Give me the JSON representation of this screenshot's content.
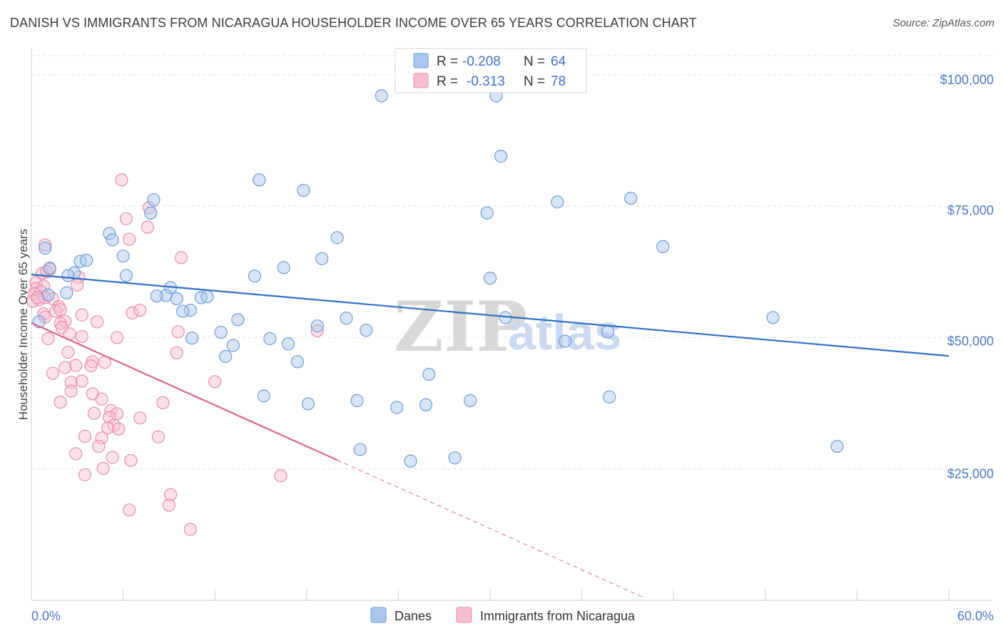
{
  "header": {
    "title": "DANISH VS IMMIGRANTS FROM NICARAGUA HOUSEHOLDER INCOME OVER 65 YEARS CORRELATION CHART",
    "source": "Source: ZipAtlas.com"
  },
  "watermark": {
    "zip": "ZIP",
    "atlas": "atlas"
  },
  "colors": {
    "danes_fill": "#a9c6ee",
    "danes_stroke": "#6f9ad6",
    "danes_line": "#2f6fc7",
    "nic_fill": "#f6bfd0",
    "nic_stroke": "#e98aa9",
    "nic_line": "#e0638e",
    "grid": "#e1e1e1",
    "axis_text": "#4a78c4"
  },
  "legend": {
    "rows": [
      {
        "r_label": "R =",
        "r_value": "-0.208",
        "n_label": "N =",
        "n_value": "64"
      },
      {
        "r_label": "R =",
        "r_value": "-0.313",
        "n_label": "N =",
        "n_value": "78"
      }
    ]
  },
  "bottom_legend": {
    "items": [
      "Danes",
      "Immigrants from Nicaragua"
    ]
  },
  "chart_data": {
    "type": "scatter",
    "title": "DANISH VS IMMIGRANTS FROM NICARAGUA HOUSEHOLDER INCOME OVER 65 YEARS CORRELATION CHART",
    "ylabel": "Householder Income Over 65 years",
    "xlabel": "",
    "xlim": [
      0,
      60
    ],
    "ylim": [
      0,
      105000
    ],
    "x_tick_labels": [
      "0.0%",
      "60.0%"
    ],
    "y_ticks": [
      25000,
      50000,
      75000,
      100000
    ],
    "y_tick_labels": [
      "$25,000",
      "$50,000",
      "$75,000",
      "$100,000"
    ],
    "grid": true,
    "legend_position": "top-center",
    "series": [
      {
        "name": "Danes",
        "trend": {
          "x": [
            0,
            60
          ],
          "y": [
            62000,
            46500
          ]
        },
        "points": [
          [
            22.9,
            96000
          ],
          [
            30.4,
            96000
          ],
          [
            30.7,
            84500
          ],
          [
            14.9,
            80000
          ],
          [
            17.8,
            78000
          ],
          [
            8.0,
            76200
          ],
          [
            39.2,
            76500
          ],
          [
            34.4,
            75800
          ],
          [
            29.8,
            73700
          ],
          [
            7.8,
            73700
          ],
          [
            5.1,
            69800
          ],
          [
            5.3,
            68600
          ],
          [
            20.0,
            69000
          ],
          [
            41.3,
            67300
          ],
          [
            0.9,
            67000
          ],
          [
            6.0,
            65500
          ],
          [
            19.0,
            65000
          ],
          [
            3.2,
            64500
          ],
          [
            3.6,
            64700
          ],
          [
            1.2,
            63200
          ],
          [
            16.5,
            63300
          ],
          [
            2.8,
            62300
          ],
          [
            2.4,
            61800
          ],
          [
            6.2,
            61800
          ],
          [
            14.6,
            61700
          ],
          [
            30.0,
            61300
          ],
          [
            9.1,
            59500
          ],
          [
            2.3,
            58500
          ],
          [
            8.8,
            58000
          ],
          [
            9.5,
            57400
          ],
          [
            11.1,
            57600
          ],
          [
            11.5,
            57800
          ],
          [
            10.4,
            55200
          ],
          [
            9.9,
            55000
          ],
          [
            13.5,
            53400
          ],
          [
            0.5,
            53000
          ],
          [
            20.6,
            53700
          ],
          [
            31.0,
            53800
          ],
          [
            48.5,
            53800
          ],
          [
            18.7,
            52200
          ],
          [
            12.4,
            51000
          ],
          [
            21.9,
            51400
          ],
          [
            37.7,
            51100
          ],
          [
            10.5,
            49900
          ],
          [
            15.6,
            49800
          ],
          [
            34.9,
            49300
          ],
          [
            16.8,
            48800
          ],
          [
            13.2,
            48500
          ],
          [
            12.7,
            46400
          ],
          [
            17.4,
            45400
          ],
          [
            26.0,
            43000
          ],
          [
            15.2,
            38900
          ],
          [
            18.1,
            37400
          ],
          [
            21.3,
            38000
          ],
          [
            23.9,
            36700
          ],
          [
            25.8,
            37200
          ],
          [
            28.7,
            38000
          ],
          [
            37.8,
            38700
          ],
          [
            21.5,
            28700
          ],
          [
            52.7,
            29300
          ],
          [
            24.8,
            26500
          ],
          [
            27.7,
            27100
          ],
          [
            8.2,
            57900
          ],
          [
            1.1,
            58100
          ]
        ]
      },
      {
        "name": "Immigrants from Nicaragua",
        "trend": {
          "x": [
            0,
            20
          ],
          "y": [
            52800,
            26700
          ]
        },
        "trend_ext": {
          "x": [
            20,
            40
          ],
          "y": [
            26700,
            600
          ]
        },
        "points": [
          [
            5.9,
            80000
          ],
          [
            7.7,
            74700
          ],
          [
            6.2,
            72600
          ],
          [
            7.6,
            71000
          ],
          [
            6.4,
            68700
          ],
          [
            0.9,
            67600
          ],
          [
            9.8,
            65200
          ],
          [
            1.2,
            63000
          ],
          [
            0.7,
            62200
          ],
          [
            1.0,
            62500
          ],
          [
            3.1,
            61500
          ],
          [
            3.0,
            60000
          ],
          [
            0.3,
            60500
          ],
          [
            0.8,
            59800
          ],
          [
            0.3,
            59300
          ],
          [
            0.6,
            58800
          ],
          [
            0.2,
            58300
          ],
          [
            0.9,
            57600
          ],
          [
            0.5,
            57200
          ],
          [
            0.1,
            56900
          ],
          [
            1.4,
            57400
          ],
          [
            1.8,
            55900
          ],
          [
            1.6,
            55000
          ],
          [
            6.6,
            54700
          ],
          [
            7.1,
            55200
          ],
          [
            0.8,
            54500
          ],
          [
            3.3,
            54300
          ],
          [
            0.9,
            53900
          ],
          [
            2.2,
            53100
          ],
          [
            4.3,
            53000
          ],
          [
            1.9,
            52700
          ],
          [
            2.0,
            51900
          ],
          [
            18.7,
            51300
          ],
          [
            9.6,
            51100
          ],
          [
            2.5,
            50700
          ],
          [
            3.3,
            50200
          ],
          [
            5.6,
            50000
          ],
          [
            1.1,
            49800
          ],
          [
            9.5,
            47100
          ],
          [
            2.4,
            47200
          ],
          [
            4.0,
            45400
          ],
          [
            4.8,
            45300
          ],
          [
            3.9,
            44600
          ],
          [
            2.9,
            44700
          ],
          [
            2.2,
            44300
          ],
          [
            1.4,
            43200
          ],
          [
            12.0,
            41600
          ],
          [
            3.3,
            41700
          ],
          [
            2.6,
            41500
          ],
          [
            4.0,
            39300
          ],
          [
            2.6,
            39800
          ],
          [
            1.9,
            37700
          ],
          [
            4.6,
            38300
          ],
          [
            8.6,
            37600
          ],
          [
            5.2,
            36100
          ],
          [
            4.1,
            35600
          ],
          [
            5.6,
            35500
          ],
          [
            7.1,
            34700
          ],
          [
            5.1,
            34800
          ],
          [
            5.4,
            33300
          ],
          [
            5.0,
            32800
          ],
          [
            5.7,
            32600
          ],
          [
            8.3,
            31100
          ],
          [
            3.5,
            31200
          ],
          [
            4.6,
            30900
          ],
          [
            4.4,
            29300
          ],
          [
            2.9,
            27900
          ],
          [
            5.3,
            27200
          ],
          [
            6.5,
            26600
          ],
          [
            4.7,
            25100
          ],
          [
            3.5,
            23900
          ],
          [
            16.3,
            23700
          ],
          [
            9.1,
            20100
          ],
          [
            6.4,
            17200
          ],
          [
            9.0,
            18100
          ],
          [
            10.4,
            13500
          ],
          [
            1.9,
            55300
          ],
          [
            0.4,
            57600
          ]
        ]
      }
    ]
  }
}
